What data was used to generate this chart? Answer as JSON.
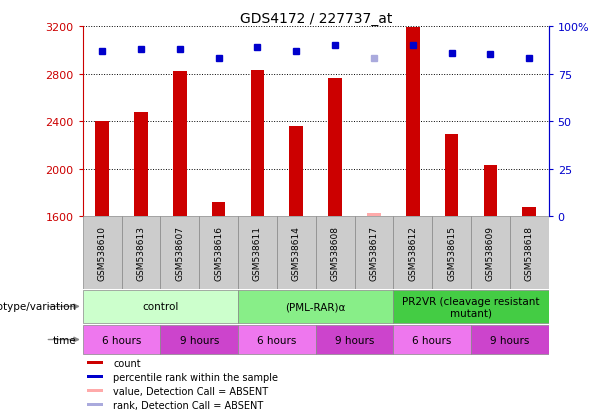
{
  "title": "GDS4172 / 227737_at",
  "samples": [
    "GSM538610",
    "GSM538613",
    "GSM538607",
    "GSM538616",
    "GSM538611",
    "GSM538614",
    "GSM538608",
    "GSM538617",
    "GSM538612",
    "GSM538615",
    "GSM538609",
    "GSM538618"
  ],
  "count_values": [
    2400,
    2480,
    2820,
    1720,
    2830,
    2360,
    2760,
    1630,
    3190,
    2290,
    2030,
    1680
  ],
  "rank_values": [
    87,
    88,
    88,
    83,
    89,
    87,
    90,
    83,
    90,
    86,
    85,
    83
  ],
  "absent_flags": [
    false,
    false,
    false,
    false,
    false,
    false,
    false,
    true,
    false,
    false,
    false,
    false
  ],
  "ylim_left": [
    1600,
    3200
  ],
  "ylim_right": [
    0,
    100
  ],
  "yticks_left": [
    1600,
    2000,
    2400,
    2800,
    3200
  ],
  "yticks_right": [
    0,
    25,
    50,
    75,
    100
  ],
  "ytick_labels_right": [
    "0",
    "25",
    "50",
    "75",
    "100%"
  ],
  "groups": [
    {
      "label": "control",
      "start": 0,
      "end": 4,
      "color": "#ccffcc"
    },
    {
      "label": "(PML-RAR)α",
      "start": 4,
      "end": 8,
      "color": "#88ee88"
    },
    {
      "label": "PR2VR (cleavage resistant\nmutant)",
      "start": 8,
      "end": 12,
      "color": "#44cc44"
    }
  ],
  "time_groups": [
    {
      "label": "6 hours",
      "start": 0,
      "end": 2,
      "color": "#ee77ee"
    },
    {
      "label": "9 hours",
      "start": 2,
      "end": 4,
      "color": "#cc44cc"
    },
    {
      "label": "6 hours",
      "start": 4,
      "end": 6,
      "color": "#ee77ee"
    },
    {
      "label": "9 hours",
      "start": 6,
      "end": 8,
      "color": "#cc44cc"
    },
    {
      "label": "6 hours",
      "start": 8,
      "end": 10,
      "color": "#ee77ee"
    },
    {
      "label": "9 hours",
      "start": 10,
      "end": 12,
      "color": "#cc44cc"
    }
  ],
  "bar_color": "#cc0000",
  "rank_color": "#0000cc",
  "absent_bar_color": "#ffaaaa",
  "absent_rank_color": "#aaaadd",
  "left_axis_color": "#cc0000",
  "right_axis_color": "#0000cc",
  "genotype_label": "genotype/variation",
  "time_label": "time",
  "legend_items": [
    {
      "label": "count",
      "color": "#cc0000"
    },
    {
      "label": "percentile rank within the sample",
      "color": "#0000cc"
    },
    {
      "label": "value, Detection Call = ABSENT",
      "color": "#ffaaaa"
    },
    {
      "label": "rank, Detection Call = ABSENT",
      "color": "#aaaadd"
    }
  ],
  "bar_width": 0.35,
  "sample_bg_color": "#cccccc",
  "sample_border_color": "#888888"
}
